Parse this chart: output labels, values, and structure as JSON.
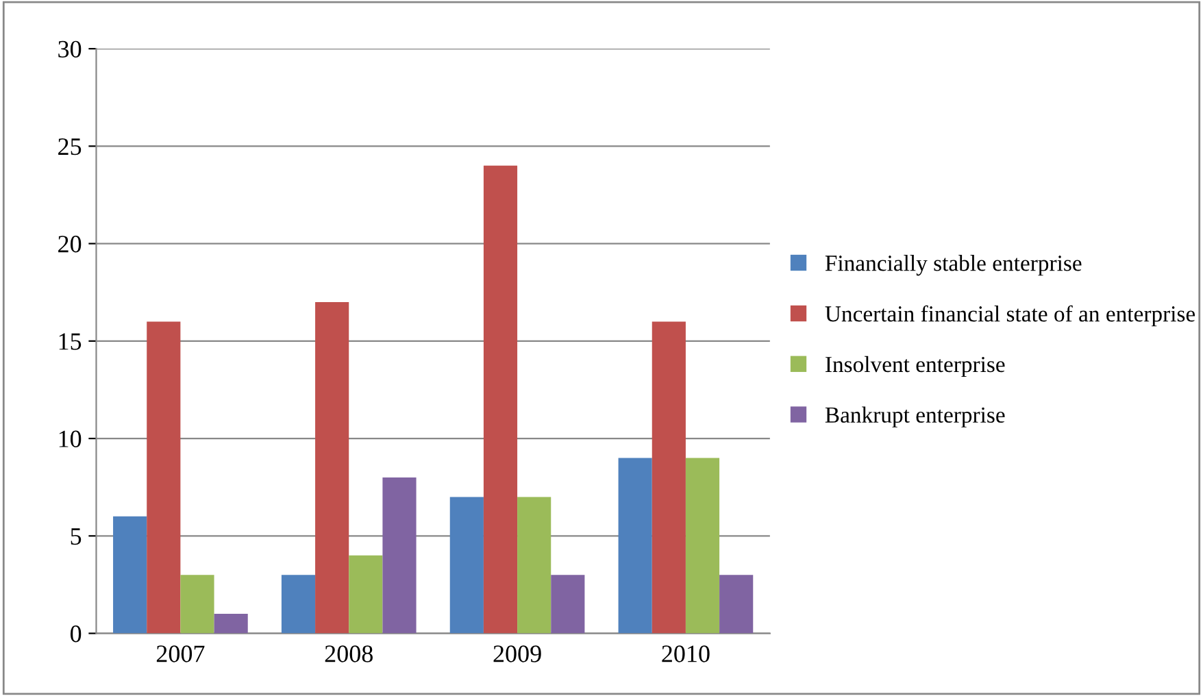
{
  "chart_data": {
    "type": "bar",
    "categories": [
      "2007",
      "2008",
      "2009",
      "2010"
    ],
    "series": [
      {
        "name": "Financially stable enterprise",
        "color": "#4f81bd",
        "values": [
          6,
          3,
          7,
          9
        ]
      },
      {
        "name": "Uncertain financial state of an enterprise",
        "color": "#c0504d",
        "values": [
          16,
          17,
          24,
          16
        ]
      },
      {
        "name": "Insolvent enterprise",
        "color": "#9bbb59",
        "values": [
          3,
          4,
          7,
          9
        ]
      },
      {
        "name": "Bankrupt enterprise",
        "color": "#8064a2",
        "values": [
          1,
          8,
          3,
          3
        ]
      }
    ],
    "ylim": [
      0,
      30
    ],
    "yticks": [
      0,
      5,
      10,
      15,
      20,
      25,
      30
    ],
    "grid": "y",
    "legend": "right"
  }
}
